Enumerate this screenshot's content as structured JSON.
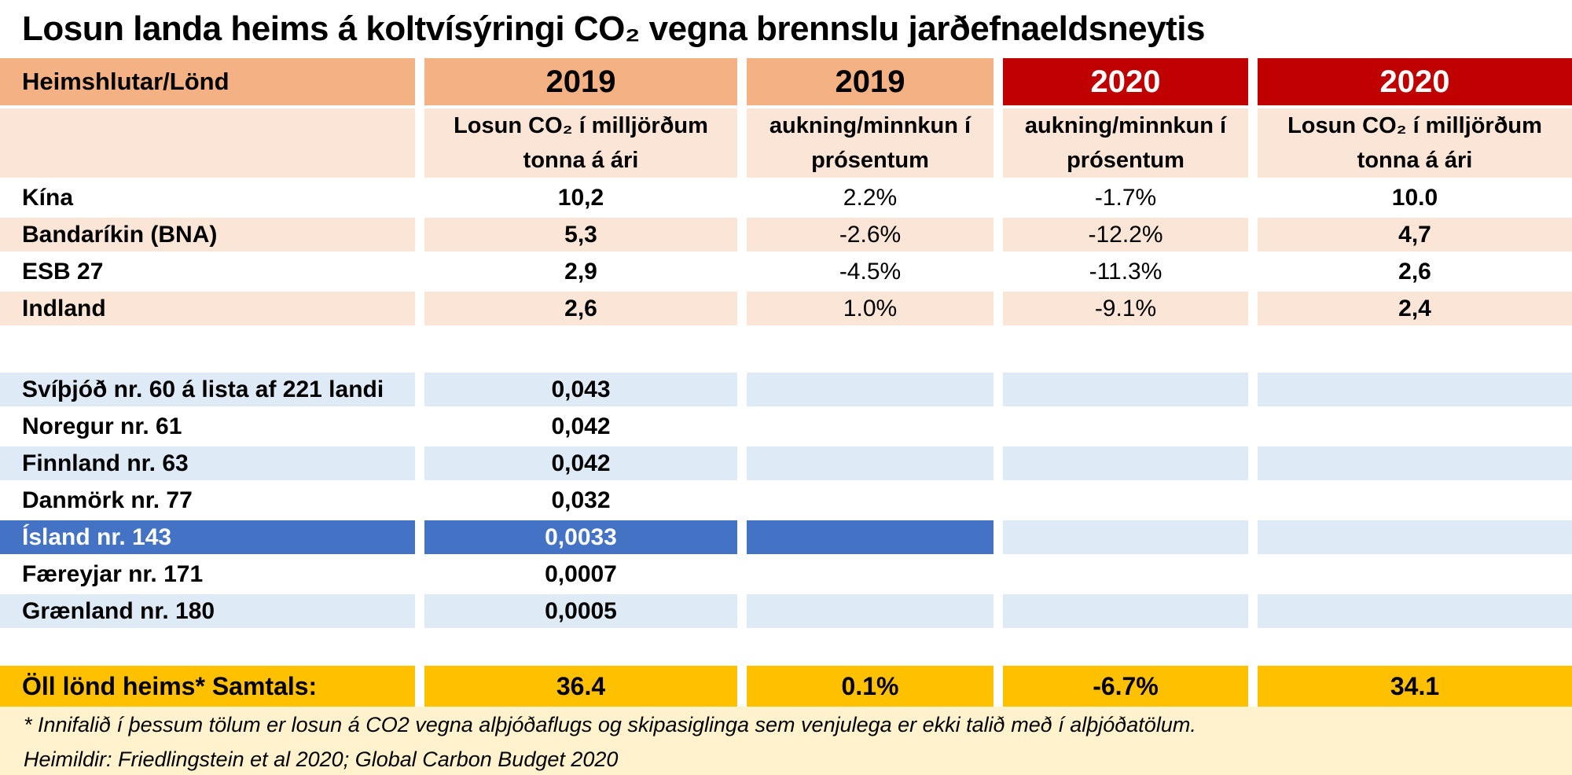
{
  "title": "Losun landa heims á koltvísýringi CO₂ vegna brennslu jarðefnaeldsneytis",
  "colors": {
    "header_peach": "#F4B183",
    "light_peach": "#FBE5D6",
    "header_red": "#C00000",
    "light_blue": "#DEEBF7",
    "highlight_blue": "#4472C4",
    "totals_gold": "#FFC000",
    "footer_cream": "#FFF2CC"
  },
  "header1": [
    "Heimshlutar/Lönd",
    "2019",
    "2019",
    "2020",
    "2020"
  ],
  "sub_headers": [
    "",
    "Losun CO₂ í milljörðum tonna á ári",
    "aukning/minnkun í prósentum",
    "aukning/minnkun í prósentum",
    "Losun CO₂ í milljörðum tonna á ári"
  ],
  "world_rows": [
    {
      "name": "Kína",
      "co2_2019": "10,2",
      "change_2019": "2.2%",
      "change_2020": "-1.7%",
      "co2_2020": "10.0"
    },
    {
      "name": "Bandaríkin (BNA)",
      "co2_2019": "5,3",
      "change_2019": "-2.6%",
      "change_2020": "-12.2%",
      "co2_2020": "4,7"
    },
    {
      "name": "ESB 27",
      "co2_2019": "2,9",
      "change_2019": "-4.5%",
      "change_2020": "-11.3%",
      "co2_2020": "2,6"
    },
    {
      "name": "Indland",
      "co2_2019": "2,6",
      "change_2019": "1.0%",
      "change_2020": "-9.1%",
      "co2_2020": "2,4"
    }
  ],
  "nordic_rows": [
    {
      "name": "Svíþjóð nr. 60 á lista af 221 landi",
      "co2_2019": "0,043"
    },
    {
      "name": "Noregur nr. 61",
      "co2_2019": "0,042"
    },
    {
      "name": "Finnland nr. 63",
      "co2_2019": "0,042"
    },
    {
      "name": "Danmörk nr. 77",
      "co2_2019": "0,032"
    },
    {
      "name": "Ísland nr. 143",
      "co2_2019": "0,0033"
    },
    {
      "name": "Færeyjar nr. 171",
      "co2_2019": "0,0007"
    },
    {
      "name": "Grænland nr. 180",
      "co2_2019": "0,0005"
    }
  ],
  "totals": {
    "name": "Öll lönd heims* Samtals:",
    "co2_2019": "36.4",
    "change_2019": "0.1%",
    "change_2020": "-6.7%",
    "co2_2020": "34.1"
  },
  "footer": {
    "footnote": "* Innifalið í þessum tölum er losun á CO2 vegna alþjóðaflugs og skipasiglinga sem venjulega er ekki talið með í alþjóðatölum.",
    "sources": "Heimildir: Friedlingstein et al 2020; Global Carbon Budget 2020"
  },
  "chart_data": {
    "type": "table",
    "title": "Losun landa heims á koltvísýringi CO₂ vegna brennslu jarðefnaeldsneytis",
    "columns": [
      "Heimshlutar/Lönd",
      "2019 — Losun CO₂ í milljörðum tonna á ári",
      "2019 — aukning/minnkun í prósentum",
      "2020 — aukning/minnkun í prósentum",
      "2020 — Losun CO₂ í milljörðum tonna á ári"
    ],
    "rows": [
      [
        "Kína",
        "10,2",
        "2.2%",
        "-1.7%",
        "10.0"
      ],
      [
        "Bandaríkin (BNA)",
        "5,3",
        "-2.6%",
        "-12.2%",
        "4,7"
      ],
      [
        "ESB 27",
        "2,9",
        "-4.5%",
        "-11.3%",
        "2,6"
      ],
      [
        "Indland",
        "2,6",
        "1.0%",
        "-9.1%",
        "2,4"
      ],
      [
        "Svíþjóð nr. 60 á lista af 221 landi",
        "0,043",
        "",
        "",
        ""
      ],
      [
        "Noregur nr. 61",
        "0,042",
        "",
        "",
        ""
      ],
      [
        "Finnland nr. 63",
        "0,042",
        "",
        "",
        ""
      ],
      [
        "Danmörk nr. 77",
        "0,032",
        "",
        "",
        ""
      ],
      [
        "Ísland nr. 143",
        "0,0033",
        "",
        "",
        ""
      ],
      [
        "Færeyjar nr. 171",
        "0,0007",
        "",
        "",
        ""
      ],
      [
        "Grænland nr. 180",
        "0,0005",
        "",
        "",
        ""
      ],
      [
        "Öll lönd heims* Samtals:",
        "36.4",
        "0.1%",
        "-6.7%",
        "34.1"
      ]
    ],
    "highlighted_row": "Ísland nr. 143",
    "footnote": "* Innifalið í þessum tölum er losun á CO2 vegna alþjóðaflugs og skipasiglinga sem venjulega er ekki talið með í alþjóðatölum.",
    "sources": "Heimildir: Friedlingstein et al 2020; Global Carbon Budget 2020"
  }
}
